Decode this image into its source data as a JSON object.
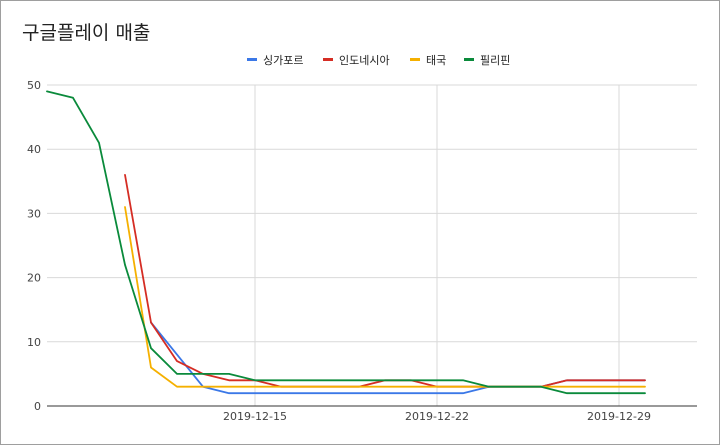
{
  "chart_data": {
    "type": "line",
    "title": "구글플레이 매출",
    "xlabel": "",
    "ylabel": "",
    "ylim": [
      0,
      50
    ],
    "yticks": [
      0,
      10,
      20,
      30,
      40,
      50
    ],
    "xrange": [
      "2019-12-07",
      "2020-01-01"
    ],
    "xticks": [
      "2019-12-15",
      "2019-12-22",
      "2019-12-29"
    ],
    "grid": true,
    "legend_position": "top",
    "x": [
      "2019-12-07",
      "2019-12-08",
      "2019-12-09",
      "2019-12-10",
      "2019-12-11",
      "2019-12-12",
      "2019-12-13",
      "2019-12-14",
      "2019-12-15",
      "2019-12-16",
      "2019-12-17",
      "2019-12-18",
      "2019-12-19",
      "2019-12-20",
      "2019-12-21",
      "2019-12-22",
      "2019-12-23",
      "2019-12-24",
      "2019-12-25",
      "2019-12-26",
      "2019-12-27",
      "2019-12-28",
      "2019-12-29",
      "2019-12-30",
      "2019-12-31",
      "2020-01-01"
    ],
    "series": [
      {
        "name": "싱가포르",
        "color": "#3b78e7",
        "values": [
          null,
          null,
          null,
          null,
          13,
          8,
          3,
          2,
          2,
          2,
          2,
          2,
          2,
          2,
          2,
          2,
          2,
          3,
          3,
          3,
          4,
          4,
          4,
          4,
          null,
          null
        ]
      },
      {
        "name": "인도네시아",
        "color": "#d52d24",
        "values": [
          null,
          null,
          null,
          36,
          13,
          7,
          5,
          4,
          4,
          3,
          3,
          3,
          3,
          4,
          4,
          3,
          3,
          3,
          3,
          3,
          4,
          4,
          4,
          4,
          null,
          null
        ]
      },
      {
        "name": "태국",
        "color": "#f5b000",
        "values": [
          null,
          null,
          null,
          31,
          6,
          3,
          3,
          3,
          3,
          3,
          3,
          3,
          3,
          3,
          3,
          3,
          3,
          3,
          3,
          3,
          3,
          3,
          3,
          3,
          null,
          null
        ]
      },
      {
        "name": "필리핀",
        "color": "#0a8a3b",
        "values": [
          49,
          48,
          41,
          22,
          9,
          5,
          5,
          5,
          4,
          4,
          4,
          4,
          4,
          4,
          4,
          4,
          4,
          3,
          3,
          3,
          2,
          2,
          2,
          2,
          null,
          null
        ]
      }
    ]
  }
}
